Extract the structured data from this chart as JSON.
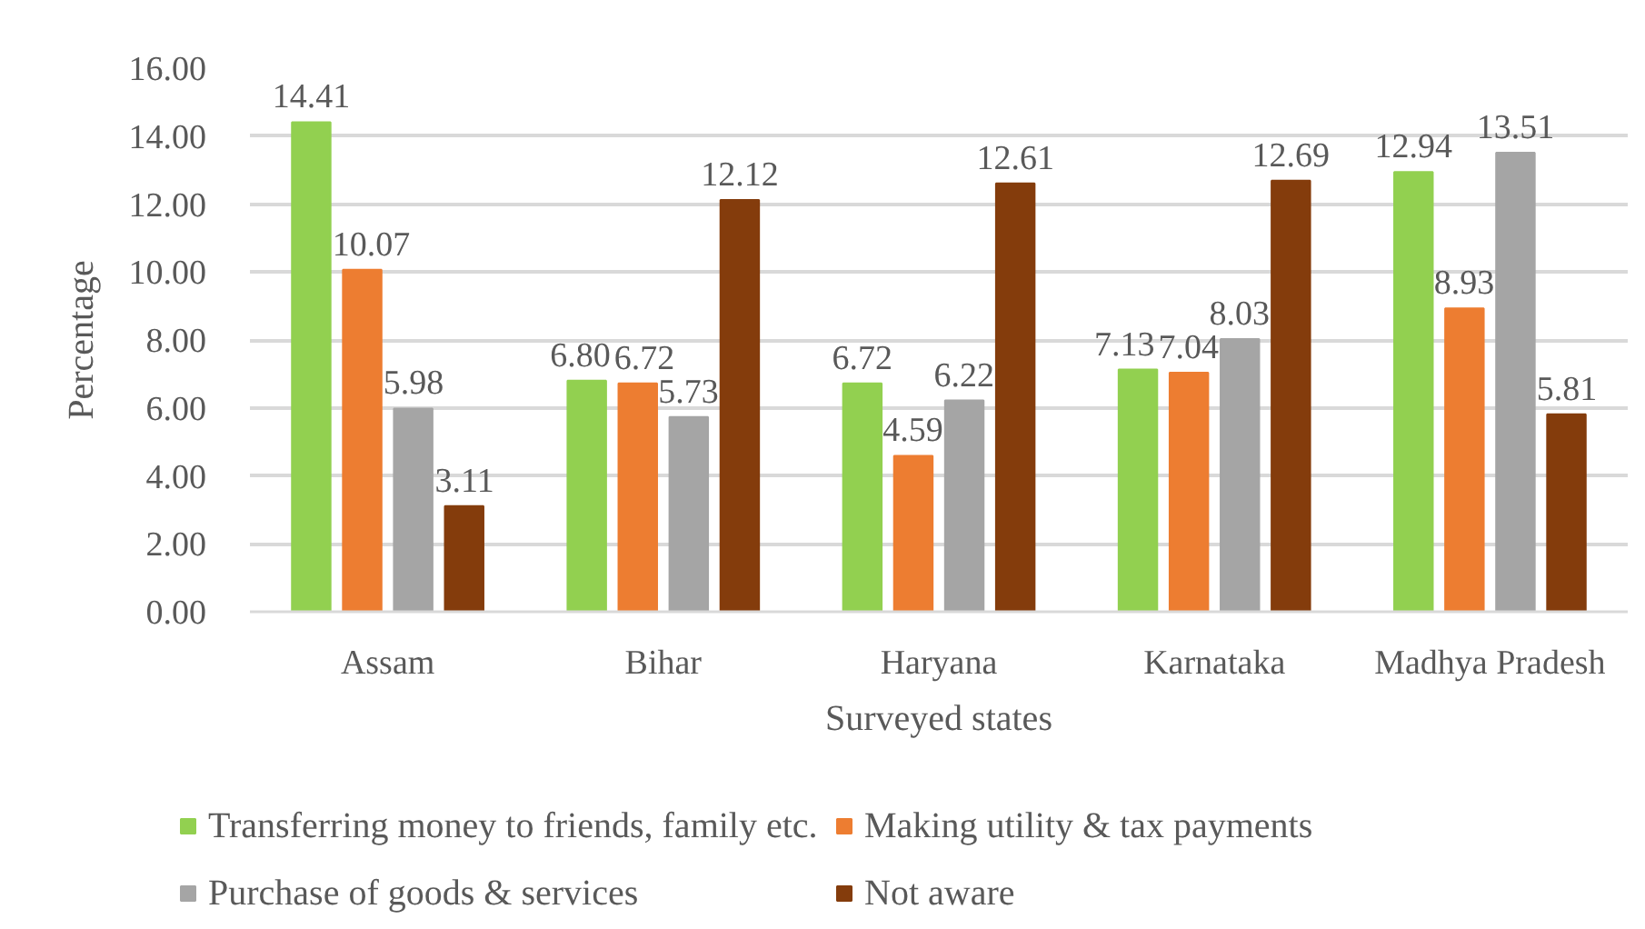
{
  "chart_data": {
    "type": "bar",
    "xlabel": "Surveyed states",
    "ylabel": "Percentage",
    "categories": [
      "Assam",
      "Bihar",
      "Haryana",
      "Karnataka",
      "Madhya Pradesh"
    ],
    "series": [
      {
        "name": "Transferring money to friends, family etc.",
        "color": "#92d050",
        "values": [
          14.41,
          6.8,
          6.72,
          7.13,
          12.94
        ],
        "value_labels": [
          "14.41",
          "6.80",
          "6.72",
          "7.13",
          "12.94"
        ]
      },
      {
        "name": "Making utility & tax payments",
        "color": "#ed7d31",
        "values": [
          10.07,
          6.72,
          4.59,
          7.04,
          8.93
        ],
        "value_labels": [
          "10.07",
          "6.72",
          "4.59",
          "7.04",
          "8.93"
        ]
      },
      {
        "name": "Purchase of goods & services",
        "color": "#a5a5a5",
        "values": [
          5.98,
          5.73,
          6.22,
          8.03,
          13.51
        ],
        "value_labels": [
          "5.98",
          "5.73",
          "6.22",
          "8.03",
          "13.51"
        ]
      },
      {
        "name": "Not aware",
        "color": "#843c0c",
        "values": [
          3.11,
          12.12,
          12.61,
          12.69,
          5.81
        ],
        "value_labels": [
          "3.11",
          "12.12",
          "12.61",
          "12.69",
          "5.81"
        ]
      }
    ],
    "ylim": [
      0,
      16
    ],
    "yticks": [
      {
        "value": 0,
        "label": "0.00"
      },
      {
        "value": 2,
        "label": "2.00"
      },
      {
        "value": 4,
        "label": "4.00"
      },
      {
        "value": 6,
        "label": "6.00"
      },
      {
        "value": 8,
        "label": "8.00"
      },
      {
        "value": 10,
        "label": "10.00"
      },
      {
        "value": 12,
        "label": "12.00"
      },
      {
        "value": 14,
        "label": "14.00"
      },
      {
        "value": 16,
        "label": "16.00"
      }
    ],
    "grid": "y",
    "legend": "bottom"
  }
}
